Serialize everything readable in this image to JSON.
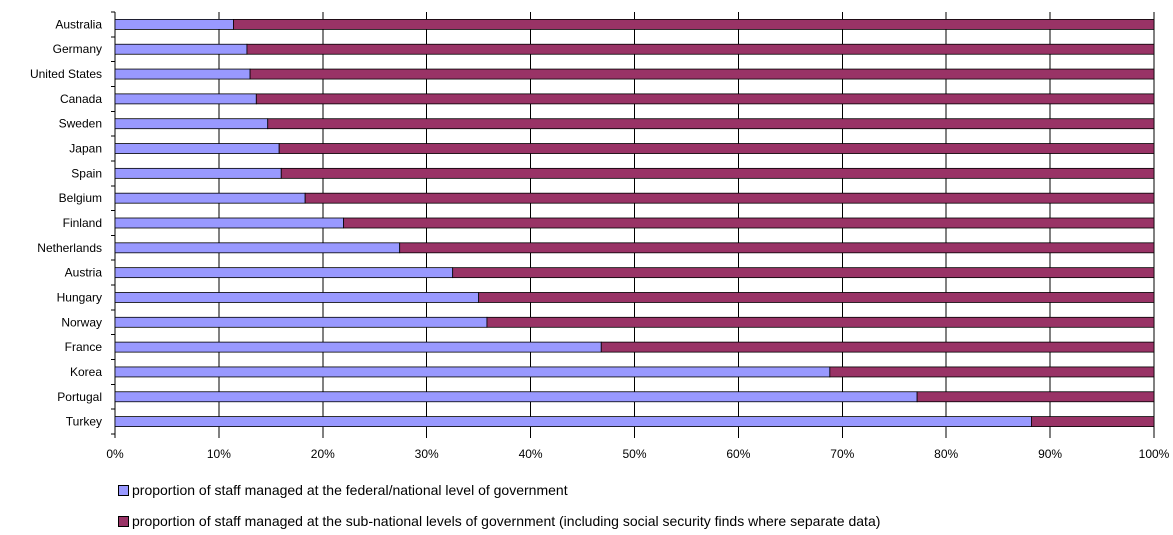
{
  "chart_data": {
    "type": "bar",
    "orientation": "horizontal",
    "stacked": true,
    "categories": [
      "Australia",
      "Germany",
      "United States",
      "Canada",
      "Sweden",
      "Japan",
      "Spain",
      "Belgium",
      "Finland",
      "Netherlands",
      "Austria",
      "Hungary",
      "Norway",
      "France",
      "Korea",
      "Portugal",
      "Turkey"
    ],
    "series": [
      {
        "name": "proportion of staff managed at the federal/national level of government",
        "color": "#9999FF",
        "values": [
          11.4,
          12.7,
          13.0,
          13.6,
          14.7,
          15.8,
          16.0,
          18.3,
          22.0,
          27.4,
          32.5,
          35.0,
          35.8,
          46.8,
          68.8,
          77.2,
          88.2
        ]
      },
      {
        "name": "proportion of staff managed at the sub-national levels of government (including social security finds where separate data)",
        "color": "#993366",
        "values": [
          88.6,
          87.3,
          87.0,
          86.4,
          85.3,
          84.2,
          84.0,
          81.7,
          78.0,
          72.6,
          67.5,
          65.0,
          64.2,
          53.2,
          31.2,
          22.8,
          11.8
        ]
      }
    ],
    "x_ticks": [
      "0%",
      "10%",
      "20%",
      "30%",
      "40%",
      "50%",
      "60%",
      "70%",
      "80%",
      "90%",
      "100%"
    ],
    "xlim": [
      0,
      100
    ],
    "grid": "vertical",
    "legend_position": "bottom",
    "title": "",
    "xlabel": "",
    "ylabel": ""
  }
}
